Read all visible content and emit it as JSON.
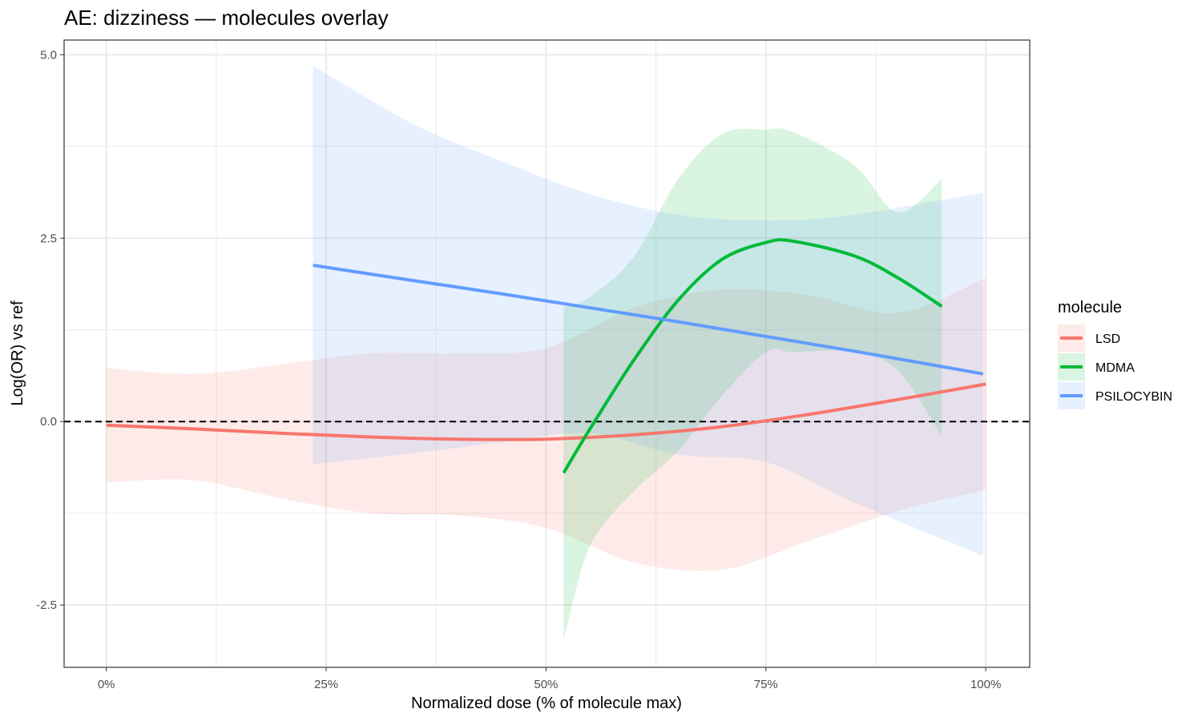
{
  "chart_data": {
    "type": "line",
    "title": "AE: dizziness — molecules overlay",
    "xlabel": "Normalized dose (% of molecule max)",
    "ylabel": "Log(OR) vs ref",
    "xlim": [
      -0.048,
      1.05
    ],
    "ylim": [
      -3.35,
      5.2
    ],
    "x_ticks": [
      0,
      0.25,
      0.5,
      0.75,
      1.0
    ],
    "x_tick_labels": [
      "0%",
      "25%",
      "50%",
      "75%",
      "100%"
    ],
    "y_ticks": [
      -2.5,
      0,
      2.5,
      5
    ],
    "y_tick_labels": [
      "-2.5",
      "0.0",
      "2.5",
      "5.0"
    ],
    "reference_line": {
      "y": 0,
      "style": "dashed"
    },
    "legend": {
      "title": "molecule",
      "position": "right"
    },
    "grid": true,
    "series": [
      {
        "name": "LSD",
        "color": "#F8766D",
        "x": [
          0.0,
          0.1,
          0.2,
          0.3,
          0.4,
          0.5,
          0.6,
          0.7,
          0.8,
          0.9,
          1.0
        ],
        "y": [
          -0.05,
          -0.1,
          -0.16,
          -0.21,
          -0.24,
          -0.24,
          -0.18,
          -0.07,
          0.1,
          0.3,
          0.51
        ],
        "lower": [
          -0.83,
          -0.8,
          -1.05,
          -1.25,
          -1.28,
          -1.45,
          -1.92,
          -2.02,
          -1.62,
          -1.22,
          -0.93
        ],
        "upper": [
          0.73,
          0.65,
          0.78,
          0.93,
          0.93,
          1.0,
          1.55,
          1.8,
          1.72,
          1.48,
          1.96
        ]
      },
      {
        "name": "MDMA",
        "color": "#00BA38",
        "x": [
          0.52,
          0.55,
          0.6,
          0.65,
          0.7,
          0.75,
          0.78,
          0.85,
          0.9,
          0.95
        ],
        "y": [
          -0.7,
          -0.1,
          0.84,
          1.65,
          2.21,
          2.44,
          2.46,
          2.26,
          1.96,
          1.57
        ],
        "lower": [
          -2.98,
          -1.7,
          -0.95,
          -0.4,
          0.35,
          0.95,
          0.95,
          0.95,
          0.7,
          -0.2
        ],
        "upper": [
          1.56,
          1.7,
          2.25,
          3.3,
          3.92,
          3.98,
          3.95,
          3.5,
          2.85,
          3.31
        ]
      },
      {
        "name": "PSILOCYBIN",
        "color": "#619CFF",
        "x": [
          0.235,
          0.35,
          0.45,
          0.55,
          0.65,
          0.75,
          0.85,
          0.997
        ],
        "y": [
          2.13,
          1.92,
          1.74,
          1.55,
          1.36,
          1.16,
          0.96,
          0.65
        ],
        "lower": [
          -0.58,
          -0.43,
          -0.28,
          -0.16,
          -0.45,
          -0.55,
          -1.1,
          -1.83
        ],
        "upper": [
          4.85,
          4.05,
          3.55,
          3.1,
          2.82,
          2.74,
          2.82,
          3.12
        ]
      }
    ]
  }
}
